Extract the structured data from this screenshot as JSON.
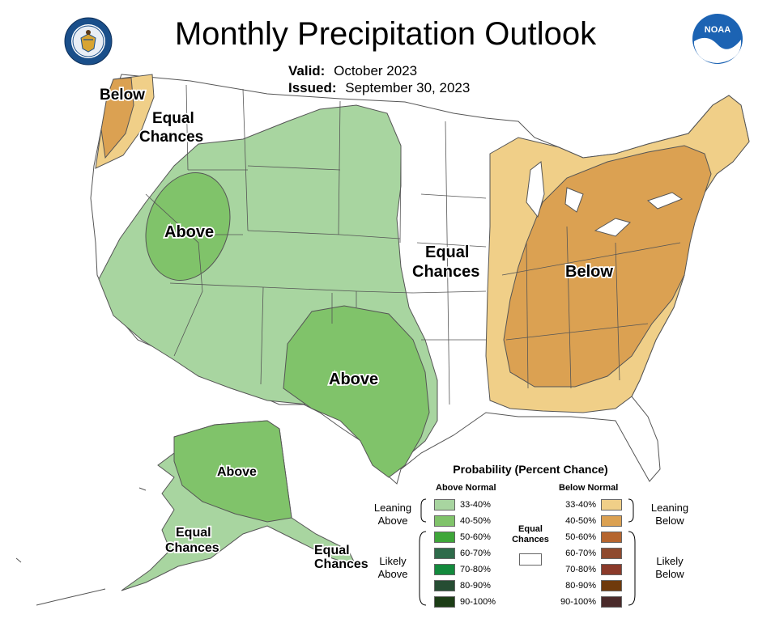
{
  "title": "Monthly Precipitation Outlook",
  "valid_label": "Valid:",
  "valid_value": "October 2023",
  "issued_label": "Issued:",
  "issued_value": "September 30, 2023",
  "logos": {
    "left": "doc-seal-icon",
    "right": "noaa-logo-icon"
  },
  "map_labels": {
    "nw_below": "Below",
    "nw_equal_1": "Equal",
    "nw_equal_2": "Chances",
    "west_above": "Above",
    "central_equal_1": "Equal",
    "central_equal_2": "Chances",
    "texas_above": "Above",
    "east_below": "Below",
    "alaska_above": "Above",
    "alaska_equal_1": "Equal",
    "alaska_equal_2": "Chances",
    "panhandle_equal_1": "Equal",
    "panhandle_equal_2": "Chances"
  },
  "legend": {
    "title": "Probability (Percent Chance)",
    "above_header": "Above Normal",
    "below_header": "Below Normal",
    "above_rows": [
      {
        "label": "33-40%",
        "color": "#a8d5a0"
      },
      {
        "label": "40-50%",
        "color": "#80c36a"
      },
      {
        "label": "50-60%",
        "color": "#3ea639"
      },
      {
        "label": "60-70%",
        "color": "#2e6b4a"
      },
      {
        "label": "70-80%",
        "color": "#138a3d"
      },
      {
        "label": "80-90%",
        "color": "#264d33"
      },
      {
        "label": "90-100%",
        "color": "#1c3d16"
      }
    ],
    "below_rows": [
      {
        "label": "33-40%",
        "color": "#f0cf88"
      },
      {
        "label": "40-50%",
        "color": "#dba152"
      },
      {
        "label": "50-60%",
        "color": "#b5652f"
      },
      {
        "label": "60-70%",
        "color": "#8f4a2e"
      },
      {
        "label": "70-80%",
        "color": "#8b3a2a"
      },
      {
        "label": "80-90%",
        "color": "#6f3a0c"
      },
      {
        "label": "90-100%",
        "color": "#4a2a2a"
      }
    ],
    "leaning_above_1": "Leaning",
    "leaning_above_2": "Above",
    "likely_above_1": "Likely",
    "likely_above_2": "Above",
    "leaning_below_1": "Leaning",
    "leaning_below_2": "Below",
    "likely_below_1": "Likely",
    "likely_below_2": "Below",
    "equal_1": "Equal",
    "equal_2": "Chances"
  }
}
